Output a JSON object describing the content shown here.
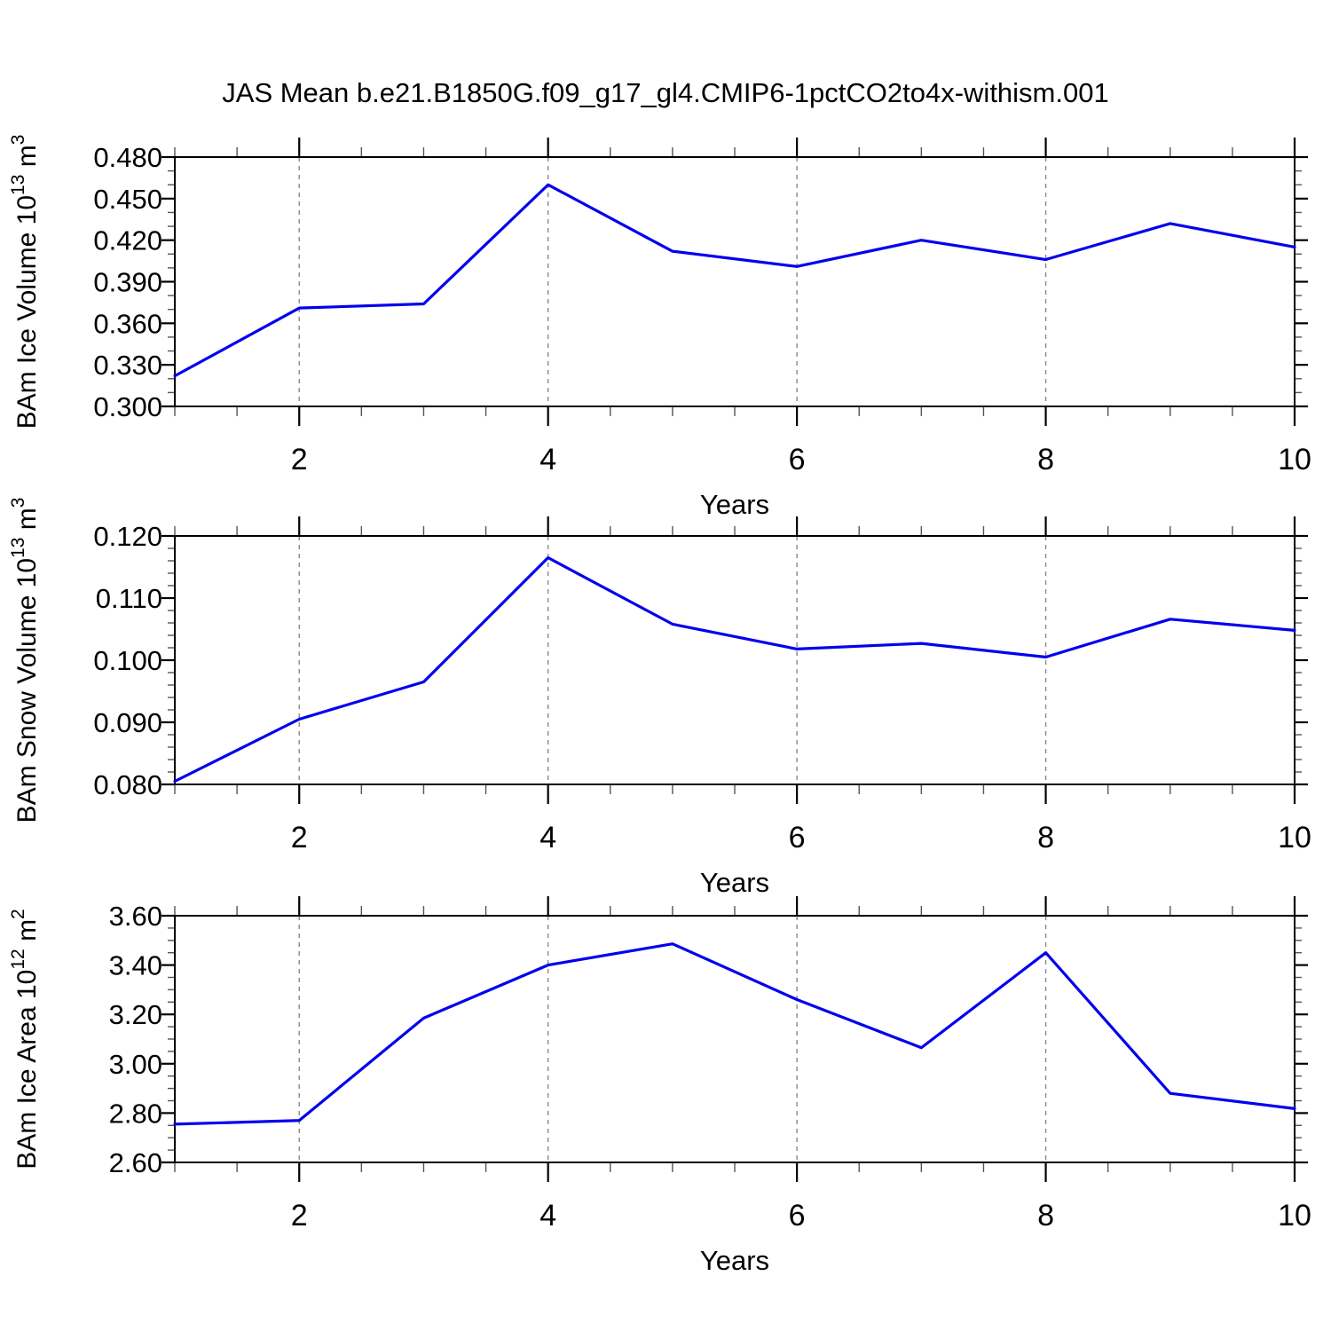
{
  "chart_data": {
    "type": "line",
    "figure_title": "JAS Mean b.e21.B1850G.f09_g17_gl4.CMIP6-1pctCO2to4x-withism.001",
    "x_axis_label": "Years",
    "x": [
      1,
      2,
      3,
      4,
      5,
      6,
      7,
      8,
      9,
      10
    ],
    "xlim": [
      1,
      10
    ],
    "x_major_ticks": [
      2,
      4,
      6,
      8,
      10
    ],
    "x_major_tick_labels": [
      "2",
      "4",
      "6",
      "8",
      "10"
    ],
    "x_minor_tick_step": 0.5,
    "x_gridline_years": [
      2,
      4,
      6,
      8
    ],
    "grid_on": true,
    "legend": "none",
    "line_color": "#0000EE",
    "gridline_color": "#888888",
    "axis_color": "#000000",
    "panels": [
      {
        "id": "ice-volume",
        "y_axis_label": "BAm Ice Volume 10¹³ m³",
        "y_label_segments": [
          {
            "text": "BAm Ice Volume 10"
          },
          {
            "text": "13",
            "sup": true
          },
          {
            "text": " m"
          },
          {
            "text": "3",
            "sup": true
          }
        ],
        "ylim": [
          0.3,
          0.48
        ],
        "y_major_ticks": [
          0.3,
          0.33,
          0.36,
          0.39,
          0.42,
          0.45,
          0.48
        ],
        "y_major_tick_labels": [
          "0.300",
          "0.330",
          "0.360",
          "0.390",
          "0.420",
          "0.450",
          "0.480"
        ],
        "y_minor_tick_step": 0.01,
        "values": [
          0.322,
          0.371,
          0.374,
          0.46,
          0.412,
          0.401,
          0.42,
          0.406,
          0.432,
          0.415
        ]
      },
      {
        "id": "snow-volume",
        "y_axis_label": "BAm Snow Volume 10¹³ m³",
        "y_label_segments": [
          {
            "text": "BAm Snow Volume 10"
          },
          {
            "text": "13",
            "sup": true
          },
          {
            "text": " m"
          },
          {
            "text": "3",
            "sup": true
          }
        ],
        "ylim": [
          0.08,
          0.12
        ],
        "y_major_ticks": [
          0.08,
          0.09,
          0.1,
          0.11,
          0.12
        ],
        "y_major_tick_labels": [
          "0.080",
          "0.090",
          "0.100",
          "0.110",
          "0.120"
        ],
        "y_minor_tick_step": 0.002,
        "values": [
          0.0805,
          0.0905,
          0.0965,
          0.1165,
          0.1058,
          0.1018,
          0.1027,
          0.1005,
          0.1066,
          0.1048
        ]
      },
      {
        "id": "ice-area",
        "y_axis_label": "BAm Ice Area 10¹² m²",
        "y_label_segments": [
          {
            "text": "BAm Ice Area 10"
          },
          {
            "text": "12",
            "sup": true
          },
          {
            "text": " m"
          },
          {
            "text": "2",
            "sup": true
          }
        ],
        "ylim": [
          2.6,
          3.6
        ],
        "y_major_ticks": [
          2.6,
          2.8,
          3.0,
          3.2,
          3.4,
          3.6
        ],
        "y_major_tick_labels": [
          "2.60",
          "2.80",
          "3.00",
          "3.20",
          "3.40",
          "3.60"
        ],
        "y_minor_tick_step": 0.05,
        "values": [
          2.755,
          2.77,
          3.185,
          3.4,
          3.486,
          3.26,
          3.065,
          3.45,
          2.88,
          2.818
        ]
      }
    ]
  }
}
